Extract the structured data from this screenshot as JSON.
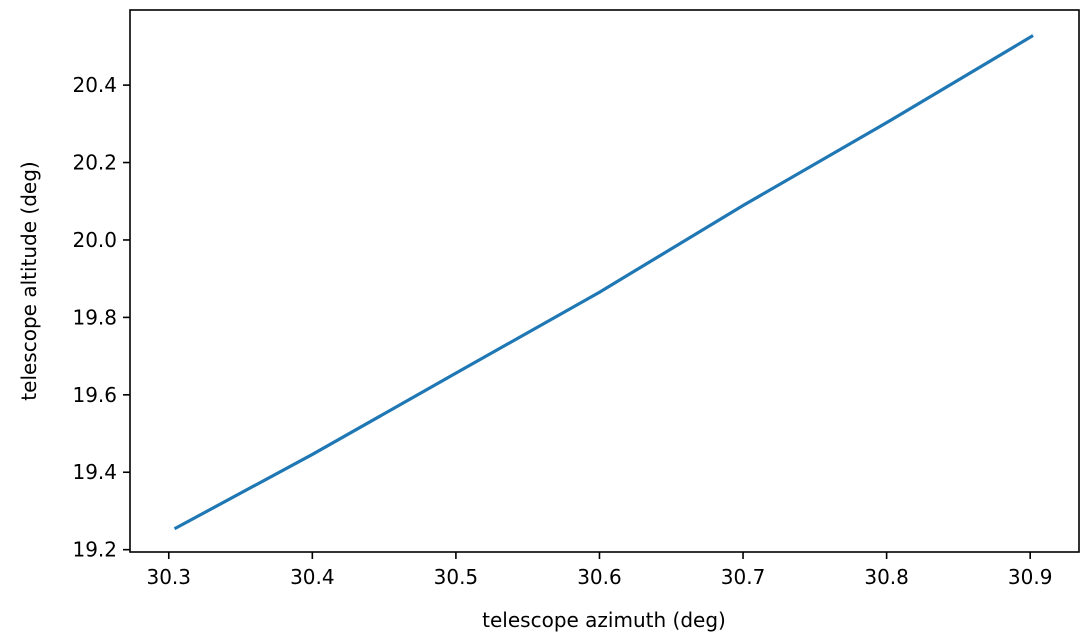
{
  "chart_data": {
    "type": "line",
    "title": "",
    "xlabel": "telescope azimuth (deg)",
    "ylabel": "telescope altitude (deg)",
    "xlim": [
      30.273,
      30.934
    ],
    "ylim": [
      19.194,
      20.594
    ],
    "xticks": [
      30.3,
      30.4,
      30.5,
      30.6,
      30.7,
      30.8,
      30.9
    ],
    "xtick_labels": [
      "30.3",
      "30.4",
      "30.5",
      "30.6",
      "30.7",
      "30.8",
      "30.9"
    ],
    "yticks": [
      19.2,
      19.4,
      19.6,
      19.8,
      20.0,
      20.2,
      20.4
    ],
    "ytick_labels": [
      "19.2",
      "19.4",
      "19.6",
      "19.8",
      "20.0",
      "20.2",
      "20.4"
    ],
    "grid": false,
    "series": [
      {
        "color": "#1f77b4",
        "x": [
          30.304,
          30.4,
          30.5,
          30.6,
          30.7,
          30.8,
          30.902
        ],
        "y": [
          19.254,
          19.446,
          19.656,
          19.865,
          20.089,
          20.303,
          20.528
        ]
      }
    ]
  }
}
